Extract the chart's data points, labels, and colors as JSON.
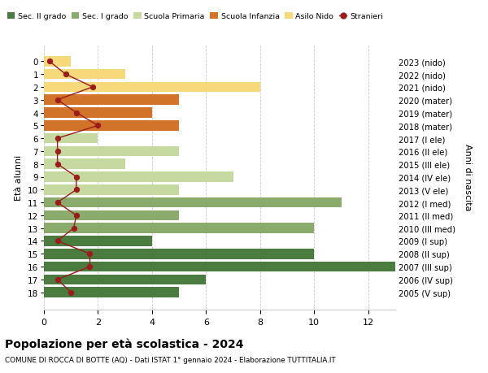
{
  "ages": [
    18,
    17,
    16,
    15,
    14,
    13,
    12,
    11,
    10,
    9,
    8,
    7,
    6,
    5,
    4,
    3,
    2,
    1,
    0
  ],
  "right_labels": [
    "2005 (V sup)",
    "2006 (IV sup)",
    "2007 (III sup)",
    "2008 (II sup)",
    "2009 (I sup)",
    "2010 (III med)",
    "2011 (II med)",
    "2012 (I med)",
    "2013 (V ele)",
    "2014 (IV ele)",
    "2015 (III ele)",
    "2016 (II ele)",
    "2017 (I ele)",
    "2018 (mater)",
    "2019 (mater)",
    "2020 (mater)",
    "2021 (nido)",
    "2022 (nido)",
    "2023 (nido)"
  ],
  "bar_values": [
    5,
    6,
    13,
    10,
    4,
    10,
    5,
    11,
    5,
    7,
    3,
    5,
    2,
    5,
    4,
    5,
    8,
    3,
    1
  ],
  "bar_colors": [
    "#4a7c3f",
    "#4a7c3f",
    "#4a7c3f",
    "#4a7c3f",
    "#4a7c3f",
    "#8aab6b",
    "#8aab6b",
    "#8aab6b",
    "#c5d9a0",
    "#c5d9a0",
    "#c5d9a0",
    "#c5d9a0",
    "#c5d9a0",
    "#d2732a",
    "#d2732a",
    "#d2732a",
    "#f5d97a",
    "#f5d97a",
    "#f5d97a"
  ],
  "stranieri_x": [
    1.0,
    0.5,
    1.7,
    1.7,
    0.5,
    1.1,
    1.2,
    0.5,
    1.2,
    1.2,
    0.5,
    0.5,
    0.5,
    2.0,
    1.2,
    0.5,
    1.8,
    0.8,
    0.2
  ],
  "legend_labels": [
    "Sec. II grado",
    "Sec. I grado",
    "Scuola Primaria",
    "Scuola Infanzia",
    "Asilo Nido",
    "Stranieri"
  ],
  "legend_colors": [
    "#4a7c3f",
    "#8aab6b",
    "#c5d9a0",
    "#d2732a",
    "#f5d97a",
    "#9b1c1c"
  ],
  "title": "Popolazione per età scolastica - 2024",
  "subtitle": "COMUNE DI ROCCA DI BOTTE (AQ) - Dati ISTAT 1° gennaio 2024 - Elaborazione TUTTITALIA.IT",
  "ylabel_left": "Età alunni",
  "ylabel_right": "Anni di nascita",
  "xlim": [
    0,
    13
  ],
  "bg_color": "#ffffff",
  "grid_color": "#cccccc"
}
